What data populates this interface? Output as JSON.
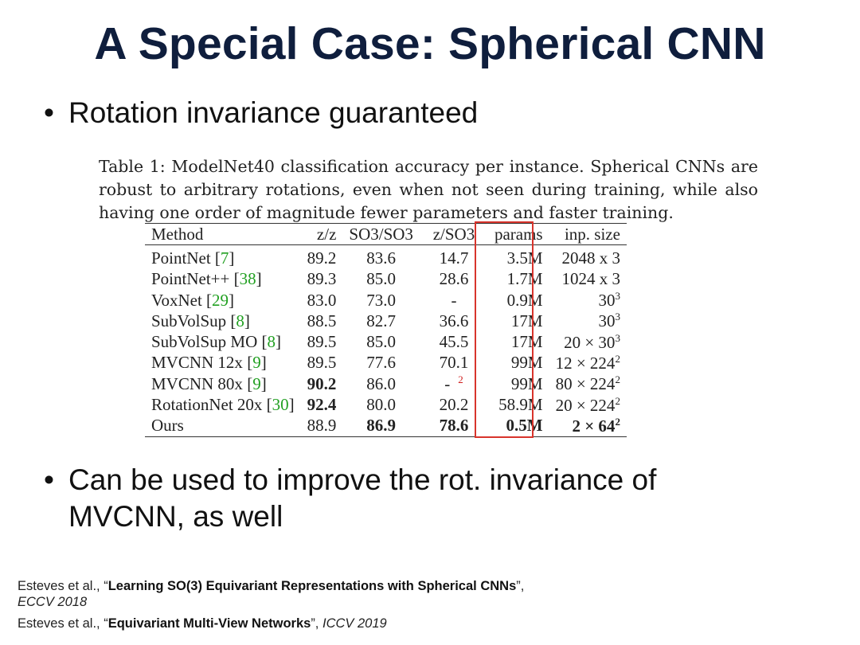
{
  "slide": {
    "title": "A Special Case: Spherical CNN",
    "bullets": [
      "Rotation invariance guaranteed",
      "Can be used to improve the rot. invariance of MVCNN, as well"
    ],
    "bullet_char": "•"
  },
  "caption": "Table 1: ModelNet40 classification accuracy per instance. Spherical CNNs are robust to arbitrary rotations, even when not seen during training, while also having one order of magnitude fewer parameters and faster training.",
  "table": {
    "headers": [
      "Method",
      "z/z",
      "SO3/SO3",
      "z/SO3",
      "params",
      "inp. size"
    ],
    "rows": [
      {
        "method": "PointNet",
        "ref": "7",
        "zz": "89.2",
        "so3so3": "83.6",
        "zso3": "14.7",
        "params": "3.5M",
        "inp": "2048 x 3",
        "inp_sup": ""
      },
      {
        "method": "PointNet++",
        "ref": "38",
        "zz": "89.3",
        "so3so3": "85.0",
        "zso3": "28.6",
        "params": "1.7M",
        "inp": "1024 x 3",
        "inp_sup": ""
      },
      {
        "method": "VoxNet",
        "ref": "29",
        "zz": "83.0",
        "so3so3": "73.0",
        "zso3": "-",
        "params": "0.9M",
        "inp": "30",
        "inp_sup": "3"
      },
      {
        "method": "SubVolSup",
        "ref": "8",
        "zz": "88.5",
        "so3so3": "82.7",
        "zso3": "36.6",
        "params": "17M",
        "inp": "30",
        "inp_sup": "3"
      },
      {
        "method": "SubVolSup MO",
        "ref": "8",
        "zz": "89.5",
        "so3so3": "85.0",
        "zso3": "45.5",
        "params": "17M",
        "inp": "20 × 30",
        "inp_sup": "3"
      },
      {
        "method": "MVCNN 12x",
        "ref": "9",
        "zz": "89.5",
        "so3so3": "77.6",
        "zso3": "70.1",
        "params": "99M",
        "inp": "12 × 224",
        "inp_sup": "2"
      },
      {
        "method": "MVCNN 80x",
        "ref": "9",
        "zz": "90.2",
        "so3so3": "86.0",
        "zso3": "-",
        "zso3_note": "2",
        "params": "99M",
        "inp": "80 × 224",
        "inp_sup": "2"
      },
      {
        "method": "RotationNet 20x",
        "ref": "30",
        "zz": "92.4",
        "so3so3": "80.0",
        "zso3": "20.2",
        "params": "58.9M",
        "inp": "20 × 224",
        "inp_sup": "2"
      },
      {
        "method": "Ours",
        "ref": "",
        "zz": "88.9",
        "so3so3": "86.9",
        "zso3": "78.6",
        "params": "0.5M",
        "inp": "2 × 64",
        "inp_sup": "2"
      }
    ]
  },
  "references": [
    {
      "authors": "Esteves et al., “",
      "title": "Learning SO(3) Equivariant Representations with Spherical CNNs",
      "close": "”, ",
      "venue": "ECCV 2018"
    },
    {
      "authors": "Esteves et al., “",
      "title": "Equivariant Multi-View Networks",
      "close": "”, ",
      "venue": "ICCV 2019"
    }
  ],
  "colors": {
    "title": "#0f1e3d",
    "highlight_box": "#d8342c",
    "citation": "#22a022"
  }
}
